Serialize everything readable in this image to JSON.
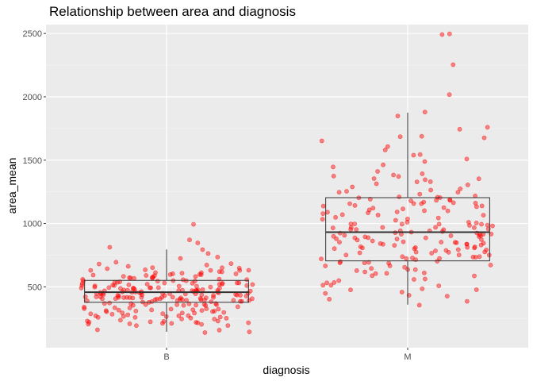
{
  "chart_data": {
    "type": "boxplot",
    "title": "Relationship between area and diagnosis",
    "xlabel": "diagnosis",
    "ylabel": "area_mean",
    "categories": [
      "B",
      "M"
    ],
    "ylim": [
      20,
      2570
    ],
    "yticks": [
      500,
      1000,
      1500,
      2000,
      2500
    ],
    "grid": true,
    "point_color": "#ff0000",
    "panel_background": "#ebebeb",
    "box_stroke": "#333333",
    "boxes": [
      {
        "category": "B",
        "min": 145,
        "q1": 378,
        "median": 458,
        "q3": 551,
        "max": 795
      },
      {
        "category": "M",
        "min": 360,
        "q1": 705,
        "median": 932,
        "q3": 1204,
        "max": 1875
      }
    ],
    "points": [
      {
        "category": "B",
        "values": [
          990,
          880,
          850,
          820,
          800,
          760,
          730,
          720,
          700,
          690,
          680,
          670,
          660,
          655,
          650,
          645,
          640,
          635,
          630,
          625,
          620,
          615,
          610,
          605,
          600,
          596,
          592,
          588,
          584,
          580,
          576,
          572,
          568,
          564,
          560,
          556,
          552,
          548,
          545,
          542,
          539,
          536,
          533,
          530,
          527,
          524,
          521,
          518,
          515,
          512,
          509,
          506,
          503,
          500,
          497,
          494,
          491,
          488,
          485,
          482,
          480,
          478,
          476,
          474,
          472,
          470,
          468,
          466,
          464,
          462,
          460,
          458,
          456,
          454,
          452,
          450,
          448,
          446,
          444,
          442,
          440,
          438,
          436,
          434,
          432,
          430,
          428,
          426,
          424,
          422,
          420,
          418,
          416,
          414,
          412,
          410,
          408,
          406,
          404,
          402,
          400,
          398,
          396,
          394,
          392,
          390,
          388,
          386,
          384,
          382,
          380,
          376,
          372,
          368,
          364,
          360,
          356,
          352,
          348,
          344,
          340,
          336,
          332,
          328,
          324,
          320,
          316,
          312,
          308,
          304,
          300,
          296,
          292,
          288,
          284,
          280,
          276,
          272,
          268,
          264,
          260,
          256,
          252,
          248,
          244,
          240,
          236,
          232,
          228,
          224,
          220,
          216,
          212,
          208,
          204,
          200,
          195,
          185,
          170,
          160,
          150,
          145,
          470,
          465,
          455,
          445,
          435,
          425,
          415,
          405,
          395,
          385,
          375,
          365,
          355,
          345,
          335,
          325,
          315,
          305,
          295,
          285,
          275,
          265,
          255,
          245,
          235,
          225,
          215,
          505,
          515,
          525,
          535,
          545,
          555,
          565,
          575,
          585,
          595,
          605,
          615,
          625,
          635,
          460,
          450,
          440,
          430,
          420,
          410,
          400,
          390,
          380,
          370,
          480,
          490,
          500,
          510,
          520,
          530,
          540,
          550,
          560,
          570,
          455,
          465,
          475,
          485,
          495,
          435,
          425,
          415,
          405,
          395
        ]
      },
      {
        "category": "M",
        "values": [
          2500,
          2500,
          2250,
          2010,
          1875,
          1840,
          1760,
          1750,
          1690,
          1680,
          1670,
          1650,
          1600,
          1580,
          1550,
          1530,
          1500,
          1480,
          1460,
          1440,
          1420,
          1400,
          1390,
          1380,
          1370,
          1360,
          1350,
          1340,
          1330,
          1320,
          1310,
          1300,
          1290,
          1280,
          1270,
          1260,
          1250,
          1240,
          1230,
          1220,
          1210,
          1200,
          1190,
          1180,
          1170,
          1160,
          1150,
          1140,
          1130,
          1120,
          1110,
          1100,
          1090,
          1080,
          1070,
          1060,
          1050,
          1040,
          1030,
          1020,
          1010,
          1000,
          995,
          990,
          985,
          980,
          975,
          970,
          965,
          960,
          955,
          950,
          945,
          940,
          935,
          930,
          925,
          920,
          915,
          910,
          905,
          900,
          895,
          890,
          885,
          880,
          875,
          870,
          865,
          860,
          855,
          850,
          845,
          840,
          835,
          830,
          825,
          820,
          815,
          810,
          805,
          800,
          795,
          790,
          785,
          780,
          775,
          770,
          765,
          760,
          755,
          750,
          745,
          740,
          735,
          730,
          725,
          720,
          715,
          710,
          705,
          700,
          690,
          680,
          670,
          660,
          650,
          640,
          630,
          620,
          610,
          600,
          590,
          580,
          570,
          560,
          550,
          540,
          530,
          520,
          510,
          500,
          490,
          480,
          470,
          460,
          450,
          440,
          420,
          400,
          380,
          360,
          1210,
          1190,
          1170,
          1150,
          1130,
          1110,
          1090,
          1070,
          1050,
          1030,
          1010,
          990,
          970,
          950,
          930,
          910,
          890,
          870,
          850,
          830,
          810,
          790,
          770,
          750,
          730,
          710,
          690,
          670,
          650,
          630,
          610,
          1000,
          980,
          960,
          940,
          920,
          900,
          880,
          860,
          840,
          820,
          1215,
          1195,
          1175,
          1155,
          1135,
          1115,
          1095,
          1075
        ]
      }
    ]
  }
}
